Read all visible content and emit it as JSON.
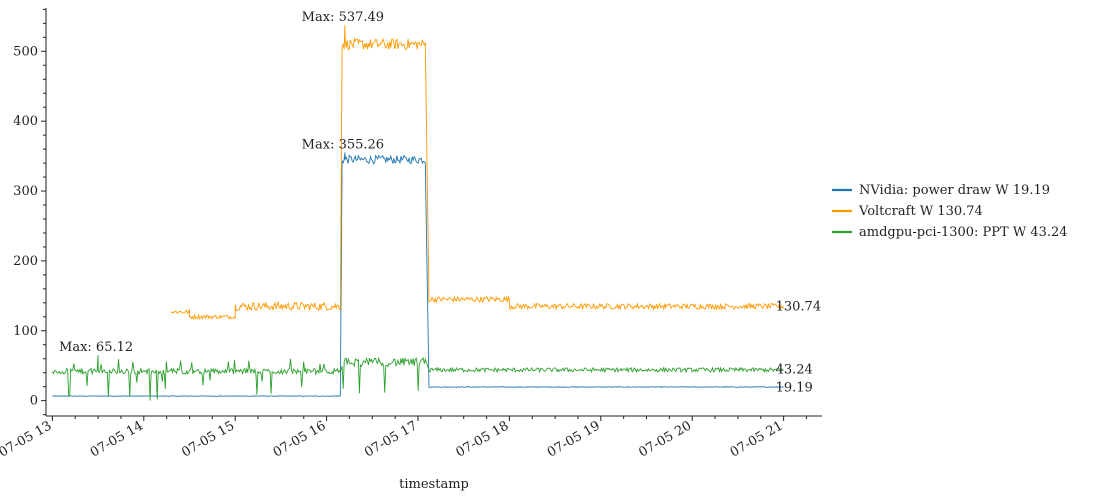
{
  "chart_data": {
    "type": "line",
    "xlabel": "timestamp",
    "ylabel": "",
    "x_range_hours": [
      12.93,
      21.42
    ],
    "ylim": [
      -22,
      562
    ],
    "x_ticks": [
      {
        "hour": 13,
        "label": "07-05 13"
      },
      {
        "hour": 14,
        "label": "07-05 14"
      },
      {
        "hour": 15,
        "label": "07-05 15"
      },
      {
        "hour": 16,
        "label": "07-05 16"
      },
      {
        "hour": 17,
        "label": "07-05 17"
      },
      {
        "hour": 18,
        "label": "07-05 18"
      },
      {
        "hour": 19,
        "label": "07-05 19"
      },
      {
        "hour": 20,
        "label": "07-05 20"
      },
      {
        "hour": 21,
        "label": "07-05 21"
      }
    ],
    "y_ticks": [
      0,
      100,
      200,
      300,
      400,
      500
    ],
    "grid": false,
    "legend_position": "right",
    "series": [
      {
        "name": "NVidia: power draw W 19.19",
        "color": "#1f77b4",
        "last_label": "19.19",
        "max_label": "Max: 355.26",
        "segments": [
          {
            "start": 13.0,
            "end": 16.15,
            "base": 6.5,
            "noise": 0.4
          },
          {
            "start": 16.17,
            "end": 17.08,
            "base": 345,
            "noise": 6
          },
          {
            "start": 17.12,
            "end": 21.0,
            "base": 19.5,
            "noise": 0.5
          }
        ],
        "max_point": [
          16.2,
          355.26
        ]
      },
      {
        "name": "Voltcraft W 130.74",
        "color": "#ff9900",
        "last_label": "130.74",
        "max_label": "Max: 537.49",
        "segments": [
          {
            "start": 14.3,
            "end": 14.5,
            "base": 127,
            "noise": 3
          },
          {
            "start": 14.5,
            "end": 15.0,
            "base": 120,
            "noise": 3
          },
          {
            "start": 15.0,
            "end": 16.15,
            "base": 135,
            "noise": 6
          },
          {
            "start": 16.17,
            "end": 17.08,
            "base": 510,
            "noise": 8
          },
          {
            "start": 17.12,
            "end": 18.0,
            "base": 145,
            "noise": 4
          },
          {
            "start": 18.0,
            "end": 21.0,
            "base": 135,
            "noise": 4
          }
        ],
        "max_point": [
          16.2,
          537.49
        ]
      },
      {
        "name": "amdgpu-pci-1300: PPT W 43.24",
        "color": "#2ca02c",
        "last_label": "43.24",
        "max_label": "Max: 65.12",
        "segments": [
          {
            "start": 13.0,
            "end": 16.15,
            "base": 42,
            "noise": 4,
            "dips": true
          },
          {
            "start": 16.17,
            "end": 17.08,
            "base": 55,
            "noise": 6,
            "dips": true
          },
          {
            "start": 17.12,
            "end": 21.0,
            "base": 44,
            "noise": 3
          }
        ],
        "max_point": [
          13.5,
          65.12
        ]
      }
    ]
  }
}
